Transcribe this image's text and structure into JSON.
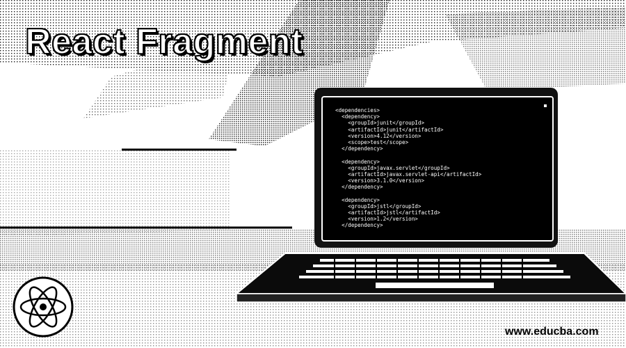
{
  "title": "React Fragment",
  "website": "www.educba.com",
  "logo_icon": "react-atom-icon",
  "laptop_icon": "laptop-icon",
  "code_lines": [
    "<dependencies>",
    "  <dependency>",
    "    <groupId>junit</groupId>",
    "    <artifactId>junit</artifactId>",
    "    <version>4.12</version>",
    "    <scope>test</scope>",
    "  </dependency>",
    "",
    "  <dependency>",
    "    <groupId>javax.servlet</groupId>",
    "    <artifactId>javax.servlet-api</artifactId>",
    "    <version>3.1.0</version>",
    "  </dependency>",
    "",
    "  <dependency>",
    "    <groupId>jstl</groupId>",
    "    <artifactId>jstl</artifactId>",
    "    <version>1.2</version>",
    "  </dependency>"
  ]
}
